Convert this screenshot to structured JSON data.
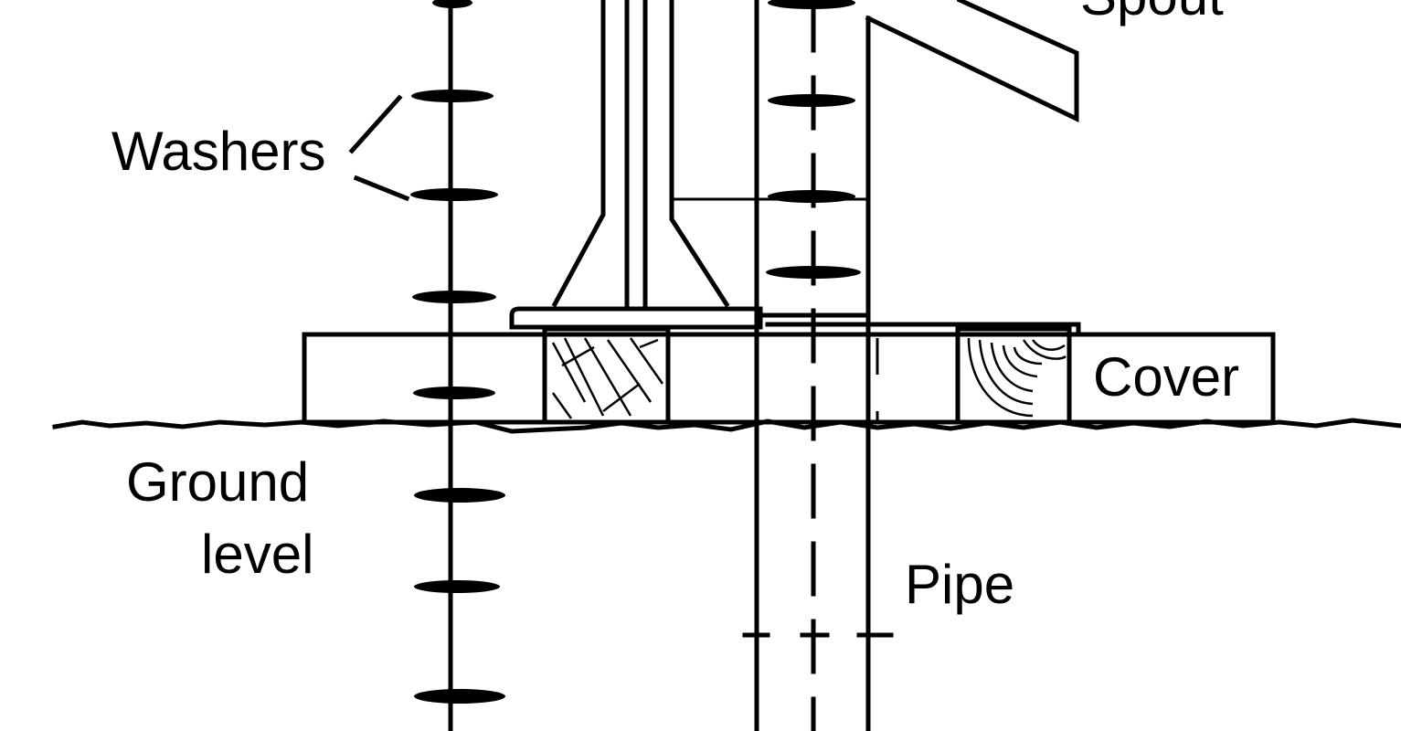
{
  "labels": {
    "spout": "Spout",
    "washers": "Washers",
    "cover": "Cover",
    "ground_line1": "Ground",
    "ground_line2": "level",
    "pipe": "Pipe"
  },
  "colors": {
    "ink": "#000000",
    "background": "#ffffff"
  }
}
